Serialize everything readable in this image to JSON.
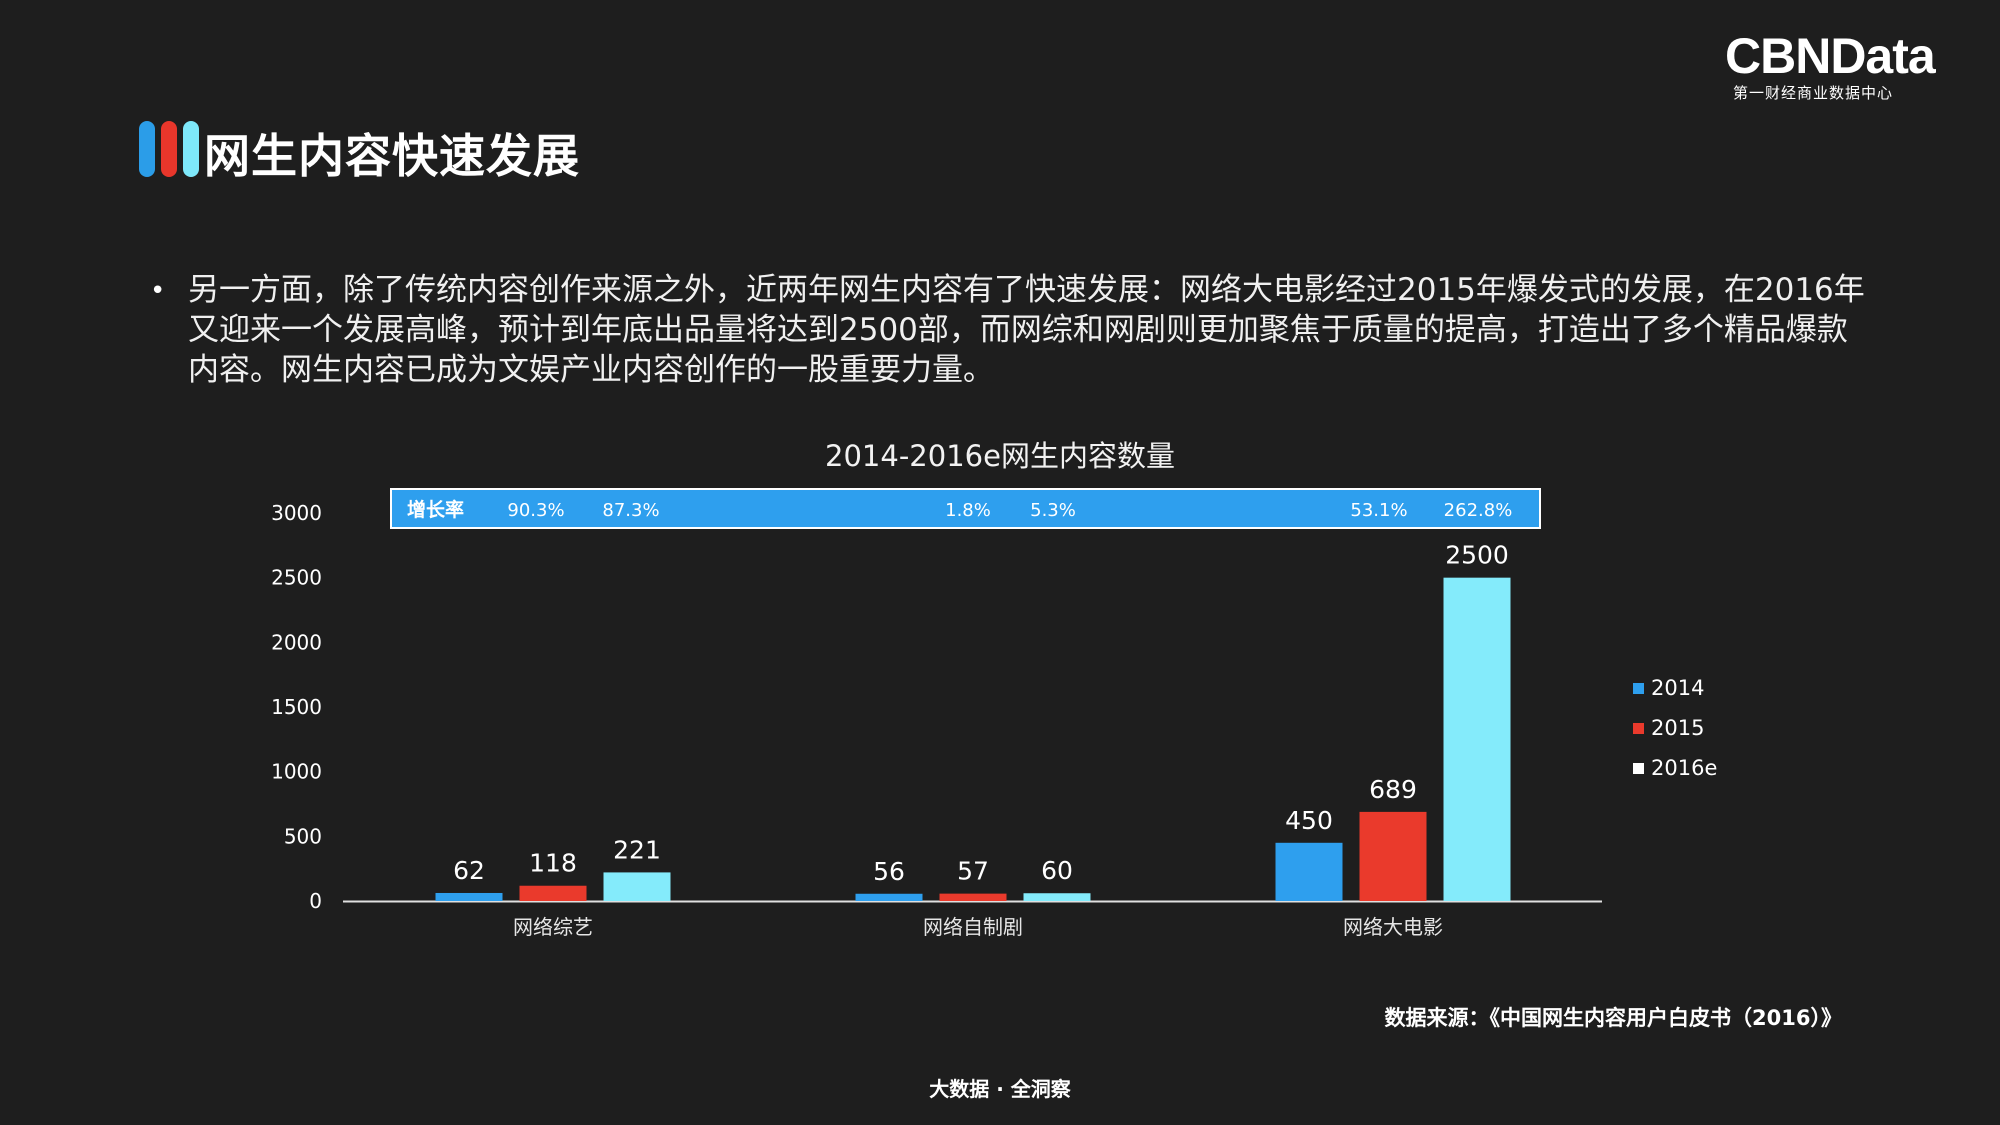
{
  "header": {
    "title": "网生内容快速发展",
    "bar_colors": [
      "#2b9de8",
      "#e8362b",
      "#7ee8fa"
    ]
  },
  "logo": {
    "main": "CBNData",
    "sub": "第一财经商业数据中心"
  },
  "bullet_symbol": "•",
  "paragraph": "另一方面，除了传统内容创作来源之外，近两年网生内容有了快速发展：网络大电影经过2015年爆发式的发展，在2016年又迎来一个发展高峰，预计到年底出品量将达到2500部，而网综和网剧则更加聚焦于质量的提高，打造出了多个精品爆款内容。网生内容已成为文娱产业内容创作的一股重要力量。",
  "chart_data": {
    "type": "bar",
    "title": "2014-2016e网生内容数量",
    "categories": [
      "网络综艺",
      "网络自制剧",
      "网络大电影"
    ],
    "series": [
      {
        "name": "2014",
        "values": [
          62,
          56,
          450
        ],
        "color": "#2e9fee"
      },
      {
        "name": "2015",
        "values": [
          118,
          57,
          689
        ],
        "color": "#ea3a2c"
      },
      {
        "name": "2016e",
        "values": [
          221,
          60,
          2500
        ],
        "color": "#84ebfb"
      }
    ],
    "ylim": [
      0,
      3000
    ],
    "yticks": [
      0,
      500,
      1000,
      1500,
      2000,
      2500,
      3000
    ],
    "grid": false,
    "legend_position": "right",
    "growth_banner": {
      "label": "增长率",
      "rates": [
        "90.3%",
        "87.3%",
        "1.8%",
        "5.3%",
        "53.1%",
        "262.8%"
      ],
      "color": "#2e9fee"
    },
    "legend_swatch_colors": [
      "#2e9fee",
      "#ea3a2c",
      "#ffffff"
    ]
  },
  "source": "数据来源：《中国网生内容用户白皮书（2016）》",
  "footer": "大数据 · 全洞察"
}
